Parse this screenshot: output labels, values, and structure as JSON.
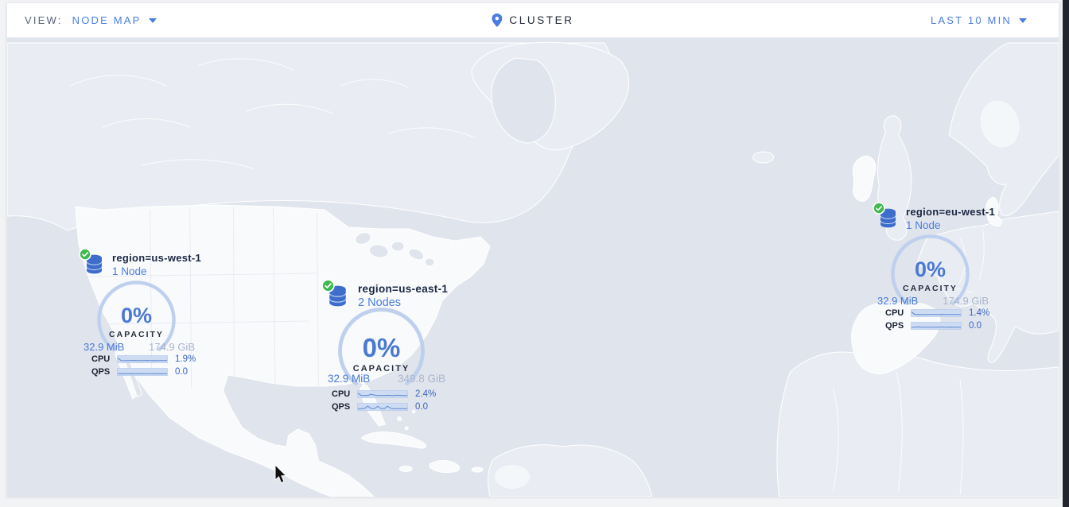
{
  "header": {
    "view_label": "VIEW:",
    "view_value": "NODE MAP",
    "cluster_label": "CLUSTER",
    "time_range": "LAST 10 MIN"
  },
  "markers": [
    {
      "region": "region=us-west-1",
      "nodes": "1 Node",
      "status": "healthy",
      "capacity_pct": "0%",
      "capacity_label": "CAPACITY",
      "used": "32.9 MiB",
      "total": "174.9 GiB",
      "cpu_label": "CPU",
      "cpu_value": "1.9%",
      "qps_label": "QPS",
      "qps_value": "0.0",
      "cpu_spark": [
        0.85,
        0.3,
        0.27,
        0.3,
        0.28,
        0.32,
        0.27,
        0.3,
        0.28,
        0.31,
        0.26,
        0.3,
        0.27,
        0.3,
        0.28,
        0.29
      ],
      "qps_spark": [
        0.24,
        0.22,
        0.23,
        0.22,
        0.24,
        0.22,
        0.23,
        0.22,
        0.23,
        0.24,
        0.22,
        0.23,
        0.22,
        0.23,
        0.22,
        0.23
      ]
    },
    {
      "region": "region=us-east-1",
      "nodes": "2 Nodes",
      "status": "healthy",
      "capacity_pct": "0%",
      "capacity_label": "CAPACITY",
      "used": "32.9 MiB",
      "total": "349.8 GiB",
      "cpu_label": "CPU",
      "cpu_value": "2.4%",
      "qps_label": "QPS",
      "qps_value": "0.0",
      "cpu_spark": [
        0.8,
        0.3,
        0.28,
        0.3,
        0.55,
        0.4,
        0.3,
        0.28,
        0.3,
        0.33,
        0.28,
        0.3,
        0.36,
        0.3,
        0.28,
        0.3
      ],
      "qps_spark": [
        0.2,
        0.2,
        0.25,
        0.75,
        0.25,
        0.2,
        0.7,
        0.25,
        0.2,
        0.72,
        0.28,
        0.2,
        0.2,
        0.22,
        0.2,
        0.2
      ]
    },
    {
      "region": "region=eu-west-1",
      "nodes": "1 Node",
      "status": "healthy",
      "capacity_pct": "0%",
      "capacity_label": "CAPACITY",
      "used": "32.9 MiB",
      "total": "174.9 GiB",
      "cpu_label": "CPU",
      "cpu_value": "1.4%",
      "qps_label": "QPS",
      "qps_value": "0.0",
      "cpu_spark": [
        0.8,
        0.3,
        0.28,
        0.3,
        0.27,
        0.3,
        0.28,
        0.3,
        0.27,
        0.31,
        0.28,
        0.3,
        0.28,
        0.3,
        0.28,
        0.3
      ],
      "qps_spark": [
        0.3,
        0.28,
        0.35,
        0.3,
        0.28,
        0.33,
        0.3,
        0.28,
        0.3,
        0.35,
        0.28,
        0.3,
        0.32,
        0.3,
        0.28,
        0.3
      ]
    }
  ],
  "colors": {
    "accent_blue": "#4a7de2",
    "gauge_ring": "#bed0ed",
    "healthy_green": "#3fba50",
    "ocean": "#e0e4ec",
    "land_light": "#e9edf3",
    "land_white": "#f8fafc",
    "spark_fill": "#cddcf3",
    "spark_line": "#5f87d2"
  }
}
